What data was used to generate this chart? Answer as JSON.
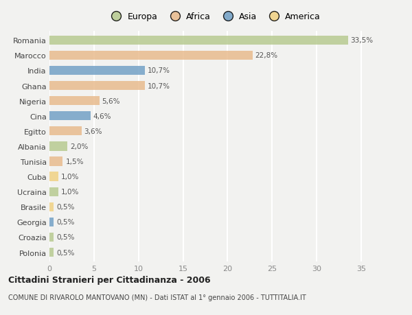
{
  "countries": [
    "Romania",
    "Marocco",
    "India",
    "Ghana",
    "Nigeria",
    "Cina",
    "Egitto",
    "Albania",
    "Tunisia",
    "Cuba",
    "Ucraina",
    "Brasile",
    "Georgia",
    "Croazia",
    "Polonia"
  ],
  "values": [
    33.5,
    22.8,
    10.7,
    10.7,
    5.6,
    4.6,
    3.6,
    2.0,
    1.5,
    1.0,
    1.0,
    0.5,
    0.5,
    0.5,
    0.5
  ],
  "labels": [
    "33,5%",
    "22,8%",
    "10,7%",
    "10,7%",
    "5,6%",
    "4,6%",
    "3,6%",
    "2,0%",
    "1,5%",
    "1,0%",
    "1,0%",
    "0,5%",
    "0,5%",
    "0,5%",
    "0,5%"
  ],
  "colors": [
    "#b5c98e",
    "#e8b98a",
    "#6e9ec4",
    "#e8b98a",
    "#e8b98a",
    "#6e9ec4",
    "#e8b98a",
    "#b5c98e",
    "#e8b98a",
    "#f0d080",
    "#b5c98e",
    "#f0d080",
    "#6e9ec4",
    "#b5c98e",
    "#b5c98e"
  ],
  "legend_labels": [
    "Europa",
    "Africa",
    "Asia",
    "America"
  ],
  "legend_colors": [
    "#b5c98e",
    "#e8b98a",
    "#6e9ec4",
    "#f0d080"
  ],
  "title": "Cittadini Stranieri per Cittadinanza - 2006",
  "subtitle": "COMUNE DI RIVAROLO MANTOVANO (MN) - Dati ISTAT al 1° gennaio 2006 - TUTTITALIA.IT",
  "xlim": [
    0,
    37
  ],
  "xticks": [
    0,
    5,
    10,
    15,
    20,
    25,
    30,
    35
  ],
  "bg_color": "#f2f2f0",
  "grid_color": "#ffffff",
  "bar_height": 0.6
}
